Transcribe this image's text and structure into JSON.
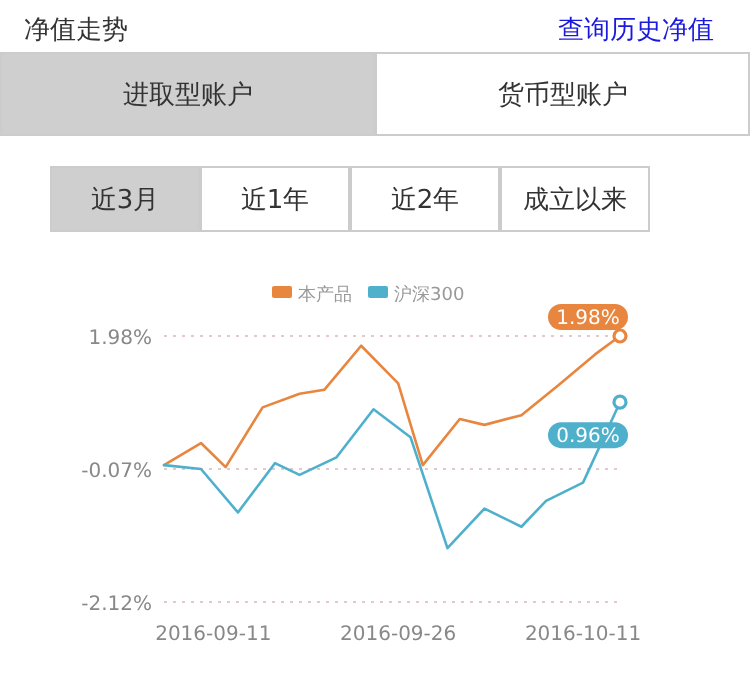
{
  "chart_data": {
    "type": "line",
    "title": "净值走势",
    "annotations": [
      "查询历史净值",
      "进取型账户",
      "货币型账户",
      "近3月",
      "近1年",
      "近2年",
      "成立以来"
    ],
    "series": [
      {
        "name": "本产品",
        "color": "#e8853f",
        "x": [
          "2016-09-07",
          "2016-09-10",
          "2016-09-12",
          "2016-09-15",
          "2016-09-18",
          "2016-09-20",
          "2016-09-23",
          "2016-09-26",
          "2016-09-28",
          "2016-10-01",
          "2016-10-03",
          "2016-10-06",
          "2016-10-09",
          "2016-10-12",
          "2016-10-14"
        ],
        "values": [
          -0.01,
          0.33,
          -0.04,
          0.88,
          1.09,
          1.15,
          1.83,
          1.25,
          -0.01,
          0.7,
          0.61,
          0.76,
          1.22,
          1.7,
          1.98
        ],
        "value_labels": [
          null,
          null,
          null,
          null,
          null,
          null,
          null,
          null,
          null,
          null,
          null,
          null,
          null,
          null,
          "1.98%"
        ]
      },
      {
        "name": "沪深300",
        "color": "#4fb0cc",
        "x": [
          "2016-09-07",
          "2016-09-10",
          "2016-09-13",
          "2016-09-16",
          "2016-09-18",
          "2016-09-21",
          "2016-09-24",
          "2016-09-27",
          "2016-09-30",
          "2016-10-03",
          "2016-10-06",
          "2016-10-08",
          "2016-10-11",
          "2016-10-14"
        ],
        "values": [
          -0.01,
          -0.07,
          -0.74,
          0.02,
          -0.16,
          0.11,
          0.85,
          0.42,
          -1.29,
          -0.68,
          -0.96,
          -0.56,
          -0.28,
          0.96
        ],
        "value_labels": [
          null,
          null,
          null,
          null,
          null,
          null,
          null,
          null,
          null,
          null,
          null,
          null,
          null,
          "0.96%"
        ]
      }
    ],
    "xlim": [
      "2016-09-07",
      "2016-10-14"
    ],
    "xticks": [
      {
        "value": "2016-09-11",
        "label": "2016-09-11"
      },
      {
        "value": "2016-09-26",
        "label": "2016-09-26"
      },
      {
        "value": "2016-10-11",
        "label": "2016-10-11"
      }
    ],
    "ylim": [
      -2.12,
      1.98
    ],
    "yticks": [
      {
        "value": -2.12,
        "label": "-2.12%"
      },
      {
        "value": -0.07,
        "label": "-0.07%"
      },
      {
        "value": 1.98,
        "label": "1.98%"
      }
    ],
    "grid": "y",
    "legend": "top",
    "line_style": "solid"
  }
}
